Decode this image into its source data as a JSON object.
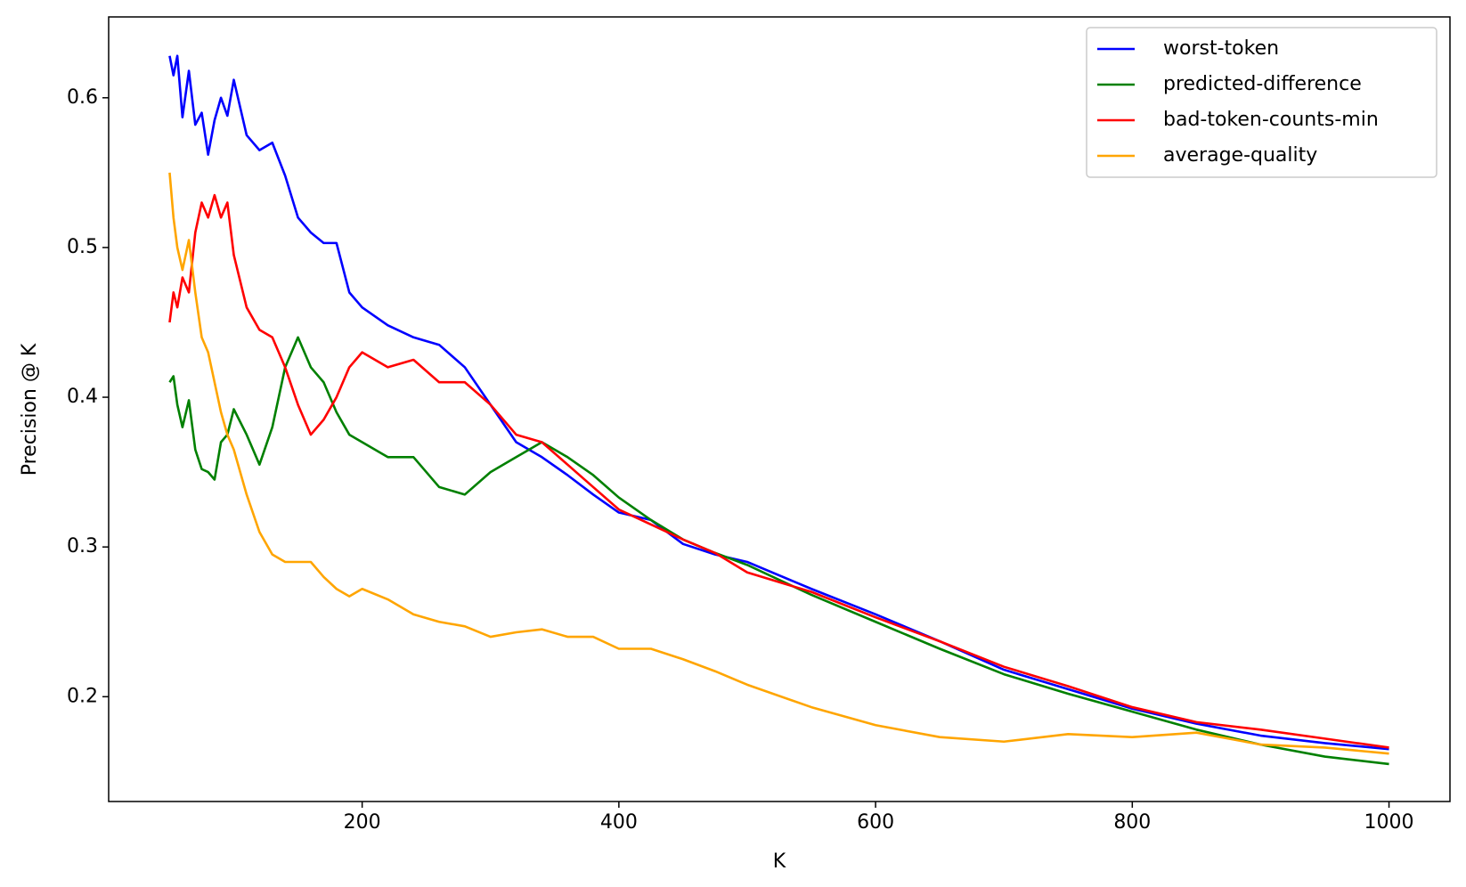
{
  "chart_data": {
    "type": "line",
    "xlabel": "K",
    "ylabel": "Precision @ K",
    "x": [
      50,
      53,
      56,
      60,
      65,
      70,
      75,
      80,
      85,
      90,
      95,
      100,
      110,
      120,
      130,
      140,
      150,
      160,
      170,
      180,
      190,
      200,
      220,
      240,
      260,
      280,
      300,
      320,
      340,
      360,
      380,
      400,
      425,
      450,
      475,
      500,
      550,
      600,
      650,
      700,
      750,
      800,
      850,
      900,
      950,
      1000
    ],
    "series": [
      {
        "name": "worst-token",
        "color": "#0000ff",
        "values": [
          0.628,
          0.615,
          0.628,
          0.587,
          0.618,
          0.582,
          0.59,
          0.562,
          0.585,
          0.6,
          0.588,
          0.612,
          0.575,
          0.565,
          0.57,
          0.548,
          0.52,
          0.51,
          0.503,
          0.503,
          0.47,
          0.46,
          0.448,
          0.44,
          0.435,
          0.42,
          0.395,
          0.37,
          0.36,
          0.348,
          0.335,
          0.323,
          0.318,
          0.302,
          0.295,
          0.29,
          0.272,
          0.255,
          0.237,
          0.218,
          0.205,
          0.192,
          0.182,
          0.174,
          0.169,
          0.165
        ]
      },
      {
        "name": "predicted-difference",
        "color": "#008000",
        "values": [
          0.41,
          0.414,
          0.395,
          0.38,
          0.398,
          0.365,
          0.352,
          0.35,
          0.345,
          0.37,
          0.375,
          0.392,
          0.375,
          0.355,
          0.38,
          0.42,
          0.44,
          0.42,
          0.41,
          0.39,
          0.375,
          0.37,
          0.36,
          0.36,
          0.34,
          0.335,
          0.35,
          0.36,
          0.37,
          0.36,
          0.348,
          0.333,
          0.318,
          0.305,
          0.296,
          0.288,
          0.268,
          0.25,
          0.232,
          0.215,
          0.202,
          0.19,
          0.178,
          0.168,
          0.16,
          0.155
        ]
      },
      {
        "name": "bad-token-counts-min",
        "color": "#ff0000",
        "values": [
          0.45,
          0.47,
          0.46,
          0.48,
          0.47,
          0.51,
          0.53,
          0.52,
          0.535,
          0.52,
          0.53,
          0.495,
          0.46,
          0.445,
          0.44,
          0.42,
          0.395,
          0.375,
          0.385,
          0.4,
          0.42,
          0.43,
          0.42,
          0.425,
          0.41,
          0.41,
          0.395,
          0.375,
          0.37,
          0.355,
          0.34,
          0.325,
          0.315,
          0.305,
          0.296,
          0.283,
          0.27,
          0.253,
          0.237,
          0.22,
          0.207,
          0.193,
          0.183,
          0.178,
          0.172,
          0.166
        ]
      },
      {
        "name": "average-quality",
        "color": "#ffa500",
        "values": [
          0.55,
          0.52,
          0.5,
          0.485,
          0.505,
          0.47,
          0.44,
          0.43,
          0.41,
          0.39,
          0.375,
          0.365,
          0.335,
          0.31,
          0.295,
          0.29,
          0.29,
          0.29,
          0.28,
          0.272,
          0.267,
          0.272,
          0.265,
          0.255,
          0.25,
          0.247,
          0.24,
          0.243,
          0.245,
          0.24,
          0.24,
          0.232,
          0.232,
          0.225,
          0.217,
          0.208,
          0.193,
          0.181,
          0.173,
          0.17,
          0.175,
          0.173,
          0.176,
          0.168,
          0.166,
          0.162
        ]
      }
    ],
    "xlim": [
      2.5,
      1047.5
    ],
    "xticks": [
      200,
      400,
      600,
      800,
      1000
    ],
    "ylim": [
      0.13,
      0.654
    ],
    "yticks": [
      0.2,
      0.3,
      0.4,
      0.5,
      0.6
    ],
    "legend": "upper right",
    "grid": false
  }
}
